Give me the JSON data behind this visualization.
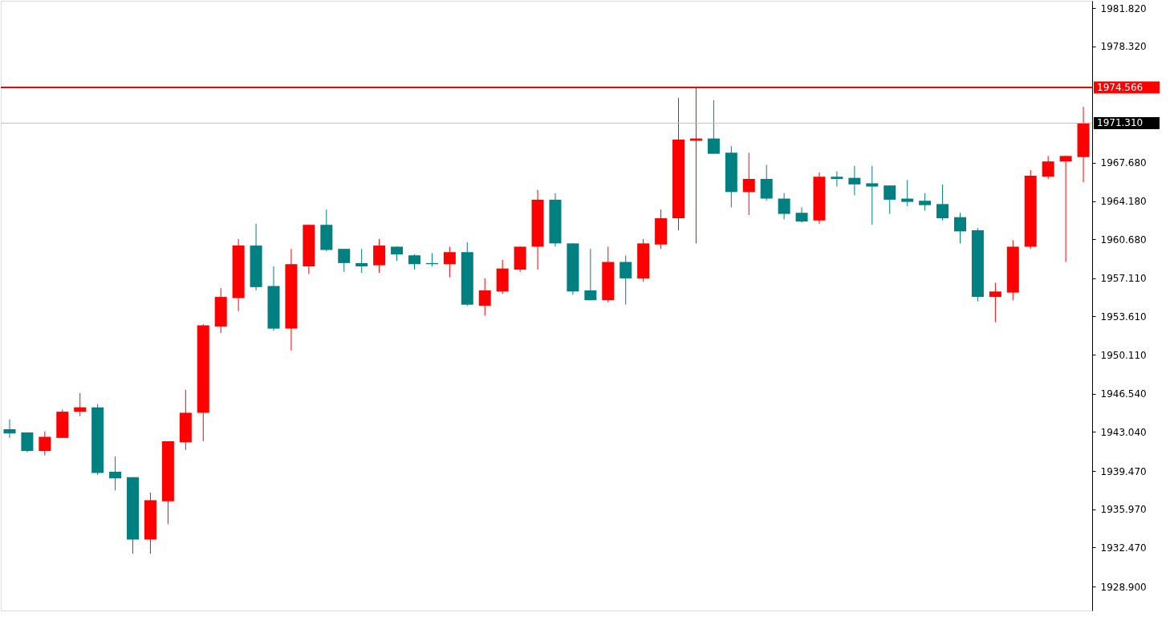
{
  "chart_data": {
    "type": "candlestick",
    "categories": [
      null,
      null,
      null,
      null,
      null,
      null,
      null,
      null,
      null,
      null,
      null,
      null,
      null,
      null,
      null,
      null,
      null,
      null,
      null,
      null,
      null,
      null,
      null,
      null,
      null,
      null,
      null,
      null,
      null,
      null,
      null,
      null,
      null,
      null,
      null,
      null,
      null,
      null,
      null,
      null,
      null,
      null,
      null,
      null,
      null,
      null,
      null,
      null,
      null,
      null,
      null,
      null,
      null,
      null,
      null,
      null,
      null,
      null,
      null,
      null,
      null,
      null
    ],
    "ohlc": [
      [
        1943.3,
        1944.2,
        1942.5,
        1942.9
      ],
      [
        1943.0,
        1943.0,
        1941.2,
        1941.3
      ],
      [
        1941.3,
        1943.1,
        1940.9,
        1942.6
      ],
      [
        1942.5,
        1945.1,
        1942.5,
        1944.9
      ],
      [
        1944.9,
        1946.6,
        1944.5,
        1945.3
      ],
      [
        1945.3,
        1945.6,
        1939.1,
        1939.3
      ],
      [
        1939.4,
        1940.8,
        1937.7,
        1938.8
      ],
      [
        1938.9,
        1938.9,
        1931.9,
        1933.2
      ],
      [
        1933.2,
        1937.5,
        1931.9,
        1936.8
      ],
      [
        1936.7,
        1942.2,
        1934.6,
        1942.2
      ],
      [
        1942.1,
        1946.9,
        1941.4,
        1944.8
      ],
      [
        1944.8,
        1952.9,
        1942.2,
        1952.8
      ],
      [
        1952.7,
        1956.2,
        1952.1,
        1955.4
      ],
      [
        1955.3,
        1960.7,
        1954.1,
        1960.1
      ],
      [
        1960.1,
        1962.1,
        1956.0,
        1956.3
      ],
      [
        1956.4,
        1958.2,
        1952.3,
        1952.5
      ],
      [
        1952.5,
        1959.8,
        1950.5,
        1958.4
      ],
      [
        1958.2,
        1962.0,
        1957.5,
        1962.0
      ],
      [
        1962.0,
        1963.4,
        1959.6,
        1959.7
      ],
      [
        1959.8,
        1959.8,
        1957.7,
        1958.5
      ],
      [
        1958.5,
        1959.8,
        1957.6,
        1958.2
      ],
      [
        1958.3,
        1960.7,
        1957.6,
        1960.1
      ],
      [
        1960.0,
        1960.0,
        1958.7,
        1959.3
      ],
      [
        1959.2,
        1959.3,
        1957.9,
        1958.4
      ],
      [
        1958.5,
        1959.4,
        1958.2,
        1958.4
      ],
      [
        1958.4,
        1960.0,
        1957.2,
        1959.5
      ],
      [
        1959.5,
        1960.4,
        1954.6,
        1954.7
      ],
      [
        1954.6,
        1957.1,
        1953.7,
        1956.0
      ],
      [
        1955.9,
        1958.8,
        1955.7,
        1958.0
      ],
      [
        1957.9,
        1960.0,
        1957.7,
        1960.0
      ],
      [
        1960.0,
        1965.2,
        1957.9,
        1964.3
      ],
      [
        1964.3,
        1964.9,
        1960.0,
        1960.3
      ],
      [
        1960.3,
        1960.3,
        1955.6,
        1955.9
      ],
      [
        1956.0,
        1959.8,
        1955.1,
        1955.1
      ],
      [
        1955.1,
        1960.0,
        1954.9,
        1958.6
      ],
      [
        1958.6,
        1959.2,
        1954.7,
        1957.1
      ],
      [
        1957.1,
        1960.7,
        1956.8,
        1960.3
      ],
      [
        1960.2,
        1963.4,
        1959.8,
        1962.6
      ],
      [
        1962.6,
        1973.6,
        1961.5,
        1969.8
      ],
      [
        1969.7,
        1974.6,
        1960.3,
        1969.9
      ],
      [
        1969.9,
        1973.4,
        1968.5,
        1968.5
      ],
      [
        1968.6,
        1969.2,
        1963.6,
        1965.0
      ],
      [
        1965.0,
        1968.6,
        1962.9,
        1966.2
      ],
      [
        1966.2,
        1967.5,
        1964.2,
        1964.4
      ],
      [
        1964.4,
        1964.9,
        1962.5,
        1963.0
      ],
      [
        1963.1,
        1963.6,
        1962.2,
        1962.3
      ],
      [
        1962.4,
        1966.8,
        1962.1,
        1966.4
      ],
      [
        1966.4,
        1966.9,
        1965.5,
        1966.2
      ],
      [
        1966.3,
        1967.4,
        1964.7,
        1965.7
      ],
      [
        1965.8,
        1967.4,
        1962.0,
        1965.5
      ],
      [
        1965.6,
        1965.6,
        1963.0,
        1964.3
      ],
      [
        1964.4,
        1966.1,
        1963.7,
        1964.1
      ],
      [
        1964.2,
        1964.9,
        1963.3,
        1963.8
      ],
      [
        1963.9,
        1965.7,
        1962.4,
        1962.6
      ],
      [
        1962.7,
        1963.1,
        1960.3,
        1961.4
      ],
      [
        1961.5,
        1961.7,
        1955.0,
        1955.4
      ],
      [
        1955.4,
        1956.7,
        1953.1,
        1955.9
      ],
      [
        1955.8,
        1960.6,
        1955.1,
        1960.0
      ],
      [
        1960.0,
        1967.0,
        1959.8,
        1966.5
      ],
      [
        1966.4,
        1968.3,
        1966.2,
        1967.8
      ],
      [
        1967.8,
        1968.3,
        1958.6,
        1968.3
      ],
      [
        1968.2,
        1972.8,
        1965.9,
        1971.3
      ]
    ],
    "colors": [
      "#008080",
      "#008080",
      "#ff0000",
      "#ff0000",
      "#ff0000",
      "#008080",
      "#008080",
      "#008080",
      "#ff0000",
      "#ff0000",
      "#ff0000",
      "#ff0000",
      "#ff0000",
      "#ff0000",
      "#008080",
      "#008080",
      "#ff0000",
      "#ff0000",
      "#008080",
      "#008080",
      "#008080",
      "#ff0000",
      "#008080",
      "#008080",
      "#008080",
      "#ff0000",
      "#008080",
      "#ff0000",
      "#ff0000",
      "#ff0000",
      "#ff0000",
      "#008080",
      "#008080",
      "#008080",
      "#ff0000",
      "#008080",
      "#ff0000",
      "#ff0000",
      "#ff0000",
      "#ff0000",
      "#008080",
      "#008080",
      "#ff0000",
      "#008080",
      "#008080",
      "#008080",
      "#ff0000",
      "#008080",
      "#008080",
      "#008080",
      "#008080",
      "#008080",
      "#008080",
      "#008080",
      "#008080",
      "#008080",
      "#ff0000",
      "#ff0000",
      "#ff0000",
      "#ff0000",
      "#ff0000",
      "#ff0000"
    ],
    "ylim": [
      1926.7,
      1982.5
    ],
    "yticks": [
      {
        "value": 1981.82,
        "label": "1981.820"
      },
      {
        "value": 1978.32,
        "label": "1978.320"
      },
      {
        "value": 1967.68,
        "label": "1967.680"
      },
      {
        "value": 1964.18,
        "label": "1964.180"
      },
      {
        "value": 1960.68,
        "label": "1960.680"
      },
      {
        "value": 1957.11,
        "label": "1957.110"
      },
      {
        "value": 1953.61,
        "label": "1953.610"
      },
      {
        "value": 1950.11,
        "label": "1950.110"
      },
      {
        "value": 1946.54,
        "label": "1946.540"
      },
      {
        "value": 1943.04,
        "label": "1943.040"
      },
      {
        "value": 1939.47,
        "label": "1939.470"
      },
      {
        "value": 1935.97,
        "label": "1935.970"
      },
      {
        "value": 1932.47,
        "label": "1932.470"
      },
      {
        "value": 1928.9,
        "label": "1928.900"
      }
    ],
    "ref_lines": [
      {
        "axis": "y",
        "value": 1974.566,
        "label": "1974.566",
        "color": "#ff0000"
      },
      {
        "axis": "y",
        "value": 1971.31,
        "label": "1971.310",
        "color": "#c0c0c0"
      }
    ],
    "tick_labels": "y",
    "grid": false
  }
}
